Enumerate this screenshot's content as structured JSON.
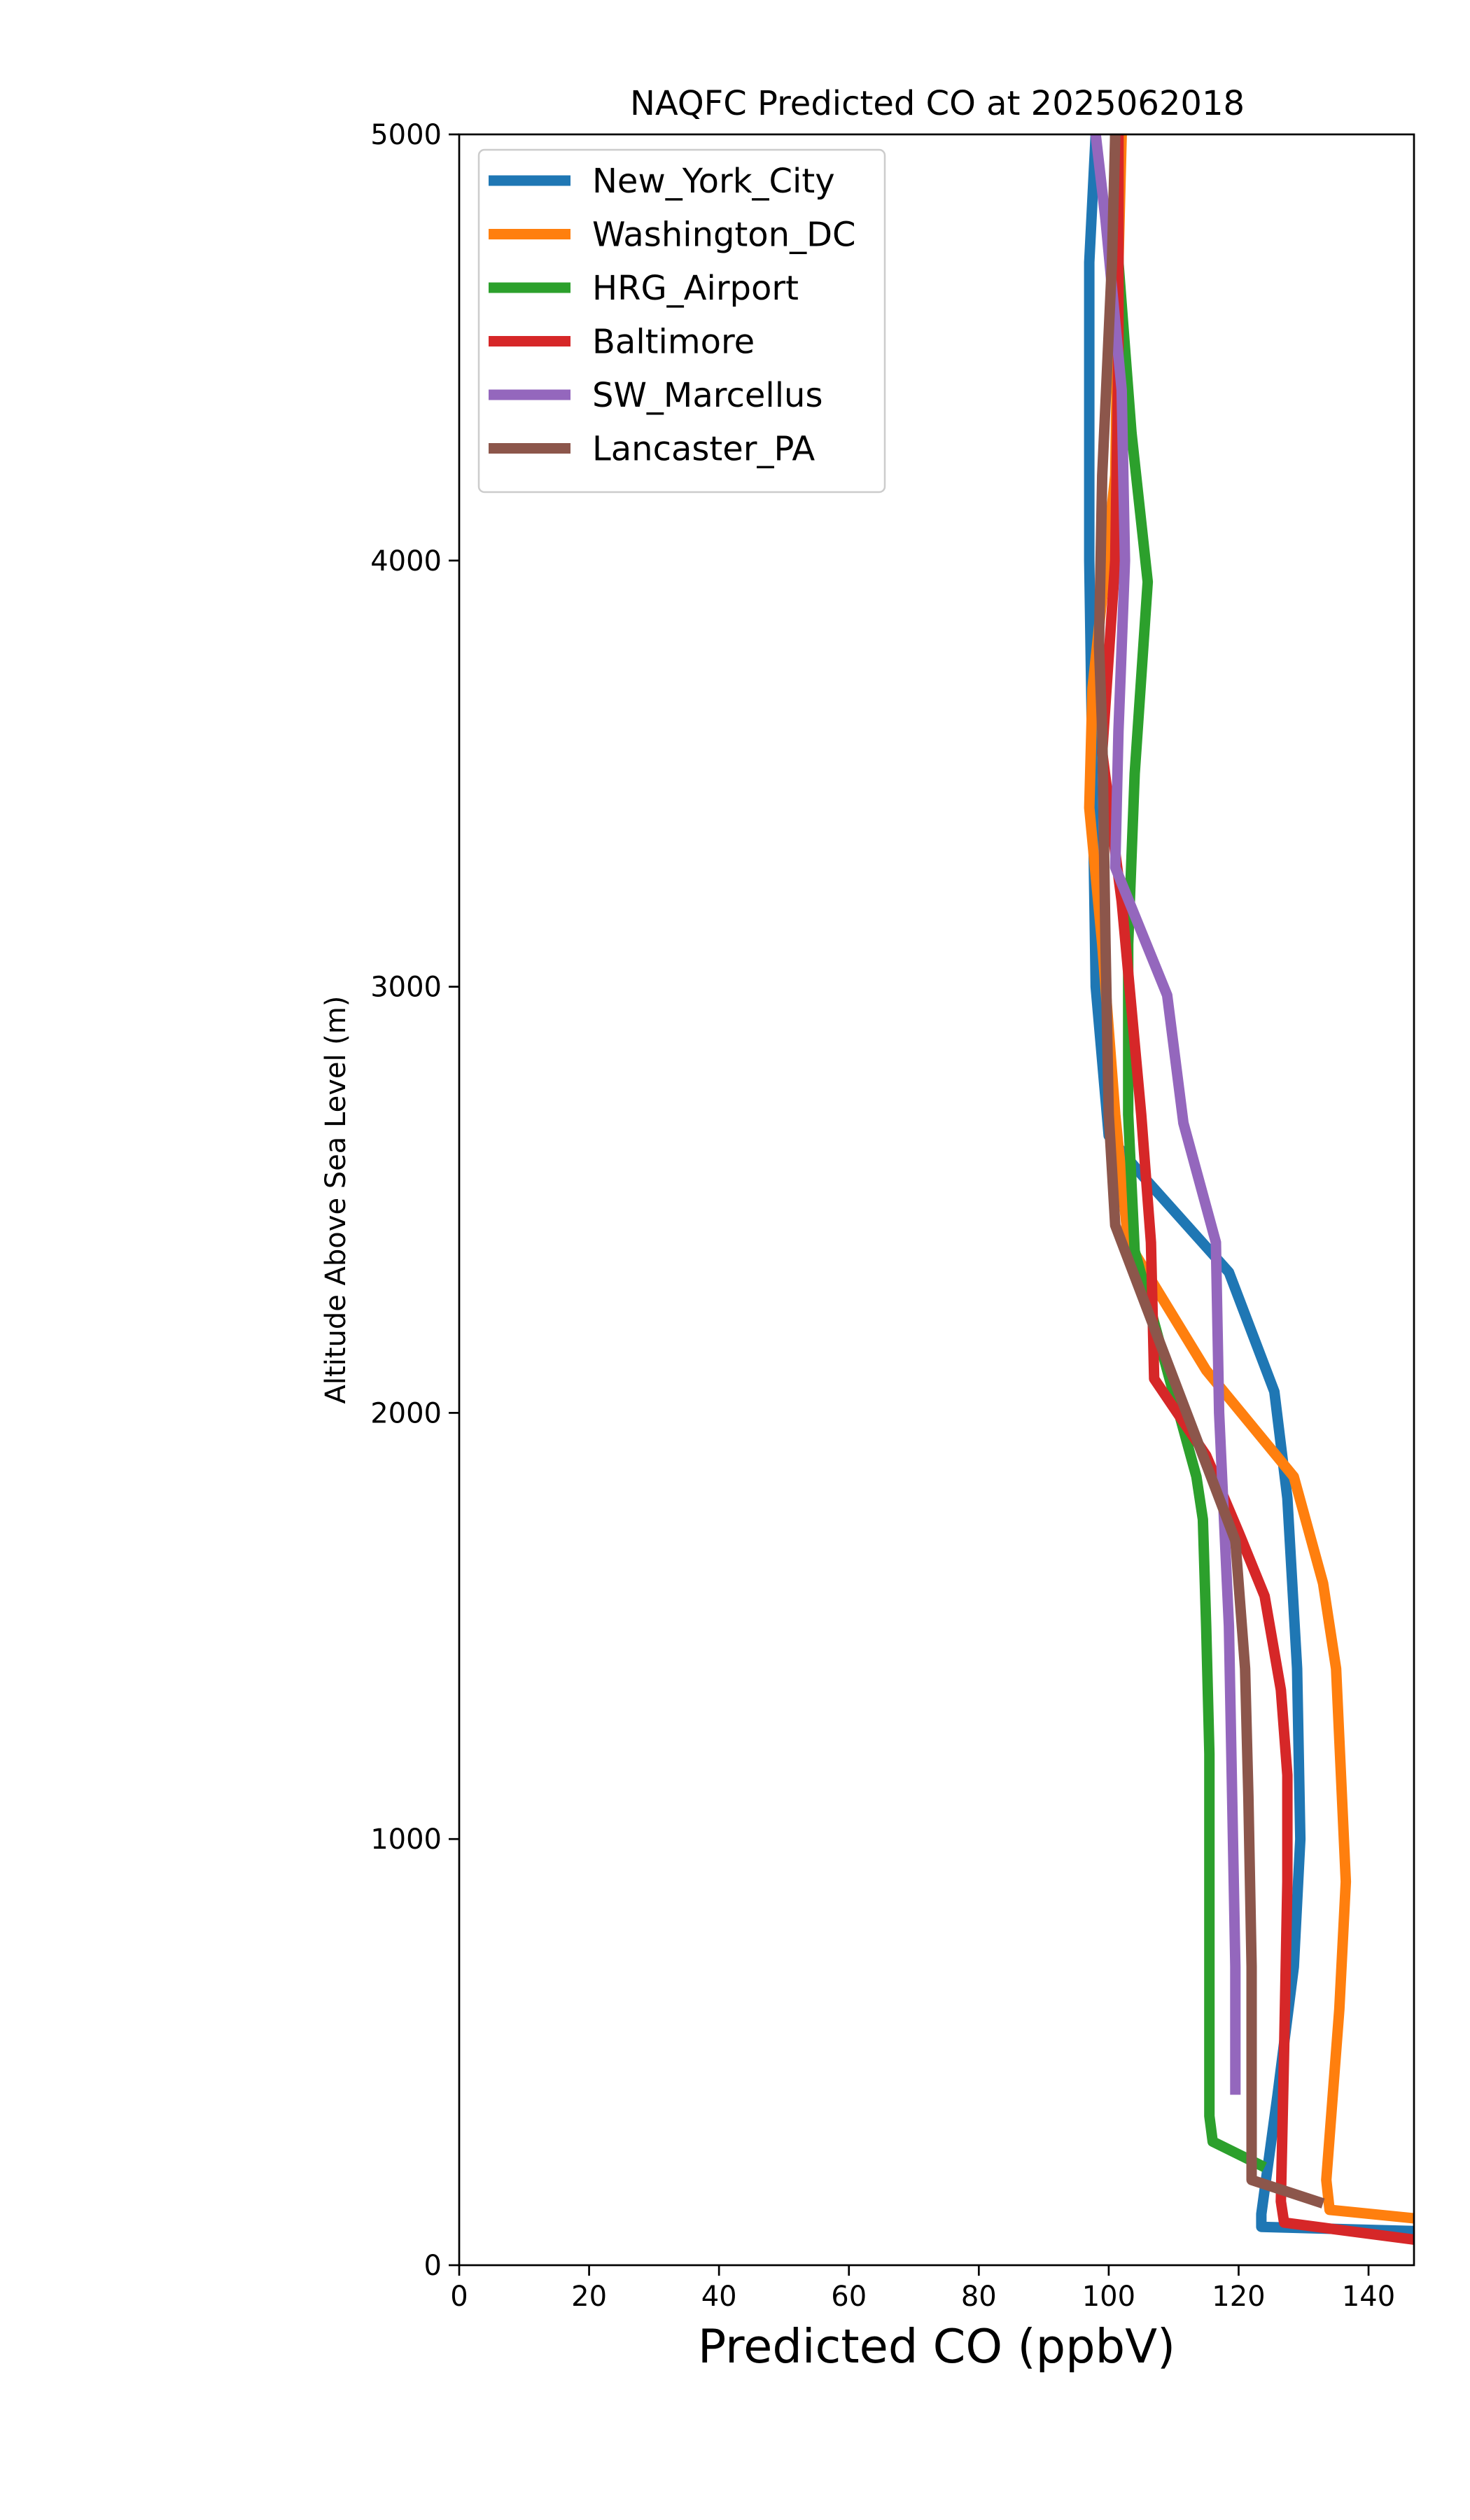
{
  "chart_data": {
    "type": "line",
    "title": "NAQFC Predicted CO at 2025062018",
    "xlabel": "Predicted CO (ppbV)",
    "ylabel": "Altitude Above Sea Level (m)",
    "xlim": [
      0,
      147
    ],
    "ylim": [
      0,
      5000
    ],
    "xticks": [
      0,
      20,
      40,
      60,
      80,
      100,
      120,
      140
    ],
    "yticks": [
      0,
      1000,
      2000,
      3000,
      4000,
      5000
    ],
    "grid": false,
    "legend_position": "upper-left",
    "series": [
      {
        "name": "New_York_City",
        "color": "#1f77b4",
        "points": [
          [
            147,
            80
          ],
          [
            123.5,
            90
          ],
          [
            123.5,
            120
          ],
          [
            126,
            400
          ],
          [
            128.5,
            700
          ],
          [
            129.5,
            1000
          ],
          [
            129,
            1400
          ],
          [
            127.5,
            1800
          ],
          [
            125.5,
            2050
          ],
          [
            118.5,
            2330
          ],
          [
            105,
            2560
          ],
          [
            100,
            2650
          ],
          [
            98,
            3000
          ],
          [
            97.5,
            3500
          ],
          [
            97,
            4000
          ],
          [
            97,
            4700
          ],
          [
            98,
            5000
          ]
        ]
      },
      {
        "name": "Washington_DC",
        "color": "#ff7f0e",
        "points": [
          [
            147,
            110
          ],
          [
            134,
            130
          ],
          [
            133.5,
            200
          ],
          [
            135.5,
            600
          ],
          [
            136.5,
            900
          ],
          [
            135,
            1400
          ],
          [
            133,
            1600
          ],
          [
            128.5,
            1850
          ],
          [
            115,
            2100
          ],
          [
            103,
            2400
          ],
          [
            101,
            2700
          ],
          [
            99,
            3100
          ],
          [
            97,
            3420
          ],
          [
            97.5,
            3700
          ],
          [
            101,
            4200
          ],
          [
            101.5,
            4700
          ],
          [
            102,
            5000
          ]
        ]
      },
      {
        "name": "HRG_Airport",
        "color": "#2ca02c",
        "points": [
          [
            124,
            230
          ],
          [
            116,
            290
          ],
          [
            115.5,
            350
          ],
          [
            115.5,
            700
          ],
          [
            115.5,
            1200
          ],
          [
            115,
            1500
          ],
          [
            114.5,
            1750
          ],
          [
            113.5,
            1850
          ],
          [
            109,
            2100
          ],
          [
            104,
            2380
          ],
          [
            103,
            2700
          ],
          [
            103,
            3100
          ],
          [
            104,
            3500
          ],
          [
            106,
            3950
          ],
          [
            103.5,
            4300
          ],
          [
            101.5,
            4700
          ],
          [
            101,
            5000
          ]
        ]
      },
      {
        "name": "Baltimore",
        "color": "#d62728",
        "points": [
          [
            147,
            60
          ],
          [
            127,
            100
          ],
          [
            126.5,
            150
          ],
          [
            127,
            500
          ],
          [
            127.5,
            900
          ],
          [
            127.5,
            1150
          ],
          [
            126.5,
            1350
          ],
          [
            124,
            1570
          ],
          [
            120,
            1720
          ],
          [
            115,
            1900
          ],
          [
            107,
            2080
          ],
          [
            106.5,
            2400
          ],
          [
            105,
            2700
          ],
          [
            102,
            3200
          ],
          [
            99,
            3550
          ],
          [
            101,
            4000
          ],
          [
            101.5,
            4500
          ],
          [
            101.5,
            5000
          ]
        ]
      },
      {
        "name": "SW_Marcellus",
        "color": "#9467bd",
        "points": [
          [
            119.5,
            400
          ],
          [
            119.5,
            700
          ],
          [
            119,
            1100
          ],
          [
            118.5,
            1500
          ],
          [
            117,
            2000
          ],
          [
            116.5,
            2400
          ],
          [
            111.5,
            2680
          ],
          [
            109,
            2980
          ],
          [
            101,
            3280
          ],
          [
            101.5,
            3600
          ],
          [
            102.5,
            4000
          ],
          [
            102,
            4400
          ],
          [
            99.5,
            4800
          ],
          [
            98,
            5000
          ]
        ]
      },
      {
        "name": "Lancaster_PA",
        "color": "#8c564b",
        "points": [
          [
            133,
            145
          ],
          [
            122,
            200
          ],
          [
            122,
            400
          ],
          [
            122,
            700
          ],
          [
            121.5,
            1100
          ],
          [
            121,
            1400
          ],
          [
            119.5,
            1700
          ],
          [
            112,
            2000
          ],
          [
            107,
            2200
          ],
          [
            101,
            2440
          ],
          [
            100,
            2700
          ],
          [
            99.5,
            3100
          ],
          [
            99,
            3600
          ],
          [
            98.5,
            3800
          ],
          [
            99,
            4200
          ],
          [
            100.5,
            4700
          ],
          [
            101,
            5000
          ]
        ]
      }
    ]
  }
}
